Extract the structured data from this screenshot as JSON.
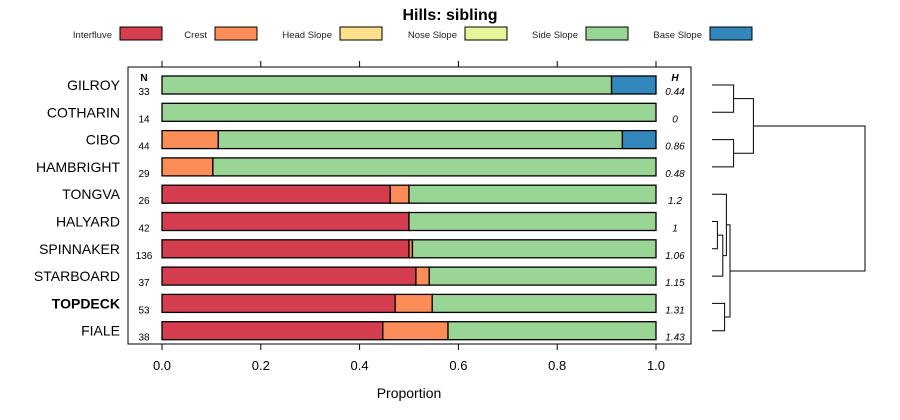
{
  "chart_data": {
    "type": "bar",
    "stacked": true,
    "orientation": "horizontal",
    "title": "Hills: sibling",
    "xlabel": "Proportion",
    "xlim": [
      0,
      1
    ],
    "xticks": [
      "0.0",
      "0.2",
      "0.4",
      "0.6",
      "0.8",
      "1.0"
    ],
    "n_header": "N",
    "h_header": "H",
    "legend": [
      {
        "name": "Interfluve",
        "color": "#d53e4f"
      },
      {
        "name": "Crest",
        "color": "#fc8d59"
      },
      {
        "name": "Head Slope",
        "color": "#fee08b"
      },
      {
        "name": "Nose Slope",
        "color": "#e6f598"
      },
      {
        "name": "Side Slope",
        "color": "#99d594"
      },
      {
        "name": "Base Slope",
        "color": "#3288bd"
      }
    ],
    "rows": [
      {
        "label": "GILROY",
        "bold": false,
        "n": "33",
        "h": "0.44",
        "values": [
          0,
          0,
          0,
          0,
          0.91,
          0.09
        ]
      },
      {
        "label": "COTHARIN",
        "bold": false,
        "n": "14",
        "h": "0",
        "values": [
          0,
          0,
          0,
          0,
          1.0,
          0
        ]
      },
      {
        "label": "CIBO",
        "bold": false,
        "n": "44",
        "h": "0.86",
        "values": [
          0,
          0.114,
          0,
          0,
          0.818,
          0.068
        ]
      },
      {
        "label": "HAMBRIGHT",
        "bold": false,
        "n": "29",
        "h": "0.48",
        "values": [
          0,
          0.103,
          0,
          0,
          0.897,
          0
        ]
      },
      {
        "label": "TONGVA",
        "bold": false,
        "n": "26",
        "h": "1.2",
        "values": [
          0.462,
          0.038,
          0,
          0,
          0.5,
          0
        ]
      },
      {
        "label": "HALYARD",
        "bold": false,
        "n": "42",
        "h": "1",
        "values": [
          0.5,
          0,
          0,
          0,
          0.5,
          0
        ]
      },
      {
        "label": "SPINNAKER",
        "bold": false,
        "n": "136",
        "h": "1.06",
        "values": [
          0.5,
          0.007,
          0,
          0,
          0.493,
          0
        ]
      },
      {
        "label": "STARBOARD",
        "bold": false,
        "n": "37",
        "h": "1.15",
        "values": [
          0.514,
          0.027,
          0,
          0,
          0.459,
          0
        ]
      },
      {
        "label": "TOPDECK",
        "bold": true,
        "n": "53",
        "h": "1.31",
        "values": [
          0.472,
          0.075,
          0,
          0,
          0.453,
          0
        ]
      },
      {
        "label": "FIALE",
        "bold": false,
        "n": "38",
        "h": "1.43",
        "values": [
          0.447,
          0.132,
          0,
          0,
          0.421,
          0
        ]
      }
    ],
    "dendrogram": {
      "leaves": [
        "GILROY",
        "COTHARIN",
        "CIBO",
        "HAMBRIGHT",
        "TONGVA",
        "HALYARD",
        "SPINNAKER",
        "STARBOARD",
        "TOPDECK",
        "FIALE"
      ],
      "merges": [
        [
          1,
          2,
          0.12
        ],
        [
          3,
          4,
          0.12
        ],
        [
          6,
          7,
          0.03
        ],
        [
          -3,
          8,
          0.06
        ],
        [
          9,
          10,
          0.07
        ],
        [
          5,
          -4,
          0.08
        ],
        [
          -1,
          -2,
          0.23
        ],
        [
          -5,
          -6,
          0.1
        ],
        [
          -7,
          -8,
          0.85
        ]
      ]
    }
  }
}
